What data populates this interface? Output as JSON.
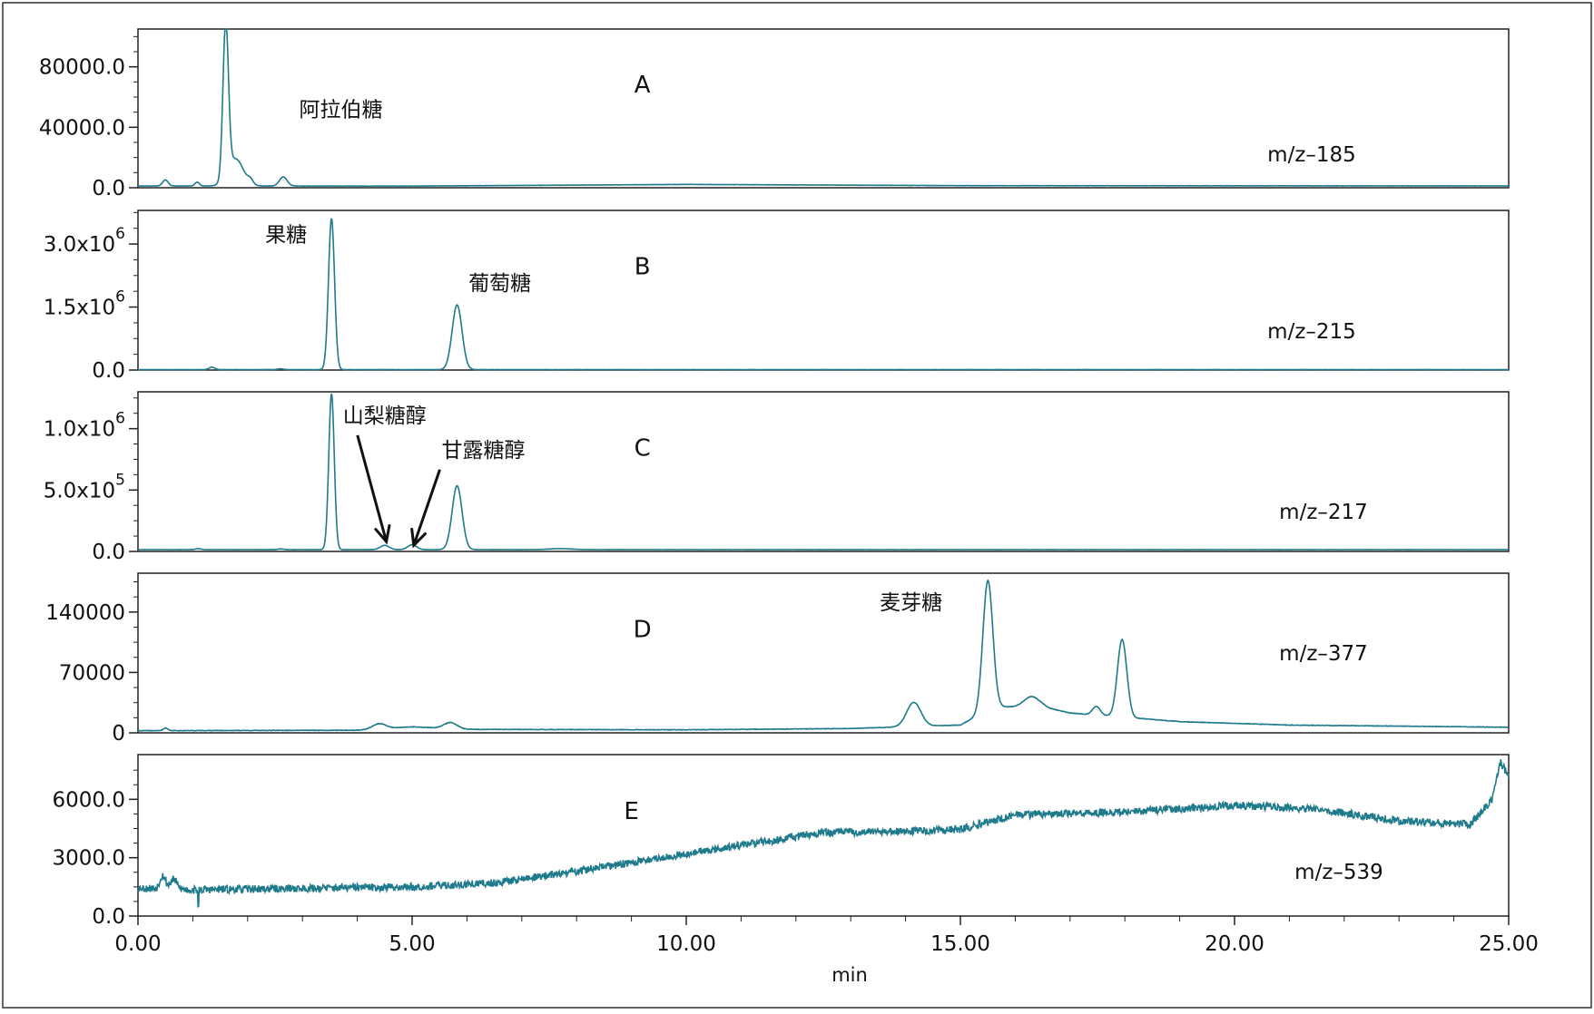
{
  "chart_data": {
    "type": "line",
    "xlabel": "min",
    "xlim": [
      0,
      25
    ],
    "x_ticks": [
      {
        "value": 0,
        "label": "0.00"
      },
      {
        "value": 5,
        "label": "5.00"
      },
      {
        "value": 10,
        "label": "10.00"
      },
      {
        "value": 15,
        "label": "15.00"
      },
      {
        "value": 20,
        "label": "20.00"
      },
      {
        "value": 25,
        "label": "25.00"
      }
    ],
    "line_color": "#1f7a8c",
    "panels": [
      {
        "id": "A",
        "letter": "A",
        "ion": "m/z–185",
        "ylim": [
          0,
          105000
        ],
        "y_ticks": [
          {
            "value": 0,
            "label": "0.0"
          },
          {
            "value": 40000,
            "label": "40000.0"
          },
          {
            "value": 80000,
            "label": "80000.0"
          }
        ],
        "annotations": [
          {
            "text": "阿拉伯糖",
            "x": 3.7,
            "y": 47000
          }
        ],
        "baseline": [
          [
            0,
            1200
          ],
          [
            5,
            1100
          ],
          [
            10,
            2200
          ],
          [
            15,
            1400
          ],
          [
            20,
            1300
          ],
          [
            25,
            1200
          ]
        ],
        "peaks": [
          {
            "rt": 0.5,
            "height": 4000,
            "width": 0.05
          },
          {
            "rt": 1.08,
            "height": 2500,
            "width": 0.04
          },
          {
            "rt": 1.6,
            "height": 102000,
            "width": 0.05
          },
          {
            "rt": 1.78,
            "height": 18000,
            "width": 0.14
          },
          {
            "rt": 2.05,
            "height": 3000,
            "width": 0.05
          },
          {
            "rt": 2.65,
            "height": 6000,
            "width": 0.07
          }
        ],
        "noise": 80,
        "seed": 11
      },
      {
        "id": "B",
        "letter": "B",
        "ion": "m/z–215",
        "ylim": [
          0,
          3800000
        ],
        "y_ticks": [
          {
            "value": 0,
            "label": "0.0",
            "base": "0.0",
            "exp": ""
          },
          {
            "value": 1500000,
            "label": "1.5x10^6",
            "base": "1.5x10",
            "exp": "6"
          },
          {
            "value": 3000000,
            "label": "3.0x10^6",
            "base": "3.0x10",
            "exp": "6"
          }
        ],
        "annotations": [
          {
            "text": "果糖",
            "x": 2.7,
            "y": 3050000
          },
          {
            "text": "葡萄糖",
            "x": 6.6,
            "y": 1900000
          }
        ],
        "baseline": [
          [
            0,
            10000
          ],
          [
            25,
            10000
          ]
        ],
        "peaks": [
          {
            "rt": 1.35,
            "height": 60000,
            "width": 0.05
          },
          {
            "rt": 2.6,
            "height": 20000,
            "width": 0.05
          },
          {
            "rt": 3.53,
            "height": 3600000,
            "width": 0.055
          },
          {
            "rt": 5.82,
            "height": 1540000,
            "width": 0.09
          }
        ],
        "noise": 2000,
        "seed": 23
      },
      {
        "id": "C",
        "letter": "C",
        "ion": "m/z–217",
        "ylim": [
          0,
          1300000
        ],
        "y_ticks": [
          {
            "value": 0,
            "label": "0.0",
            "base": "0.0",
            "exp": ""
          },
          {
            "value": 500000,
            "label": "5.0x10^5",
            "base": "5.0x10",
            "exp": "5"
          },
          {
            "value": 1000000,
            "label": "1.0x10^6",
            "base": "1.0x10",
            "exp": "6"
          }
        ],
        "annotations": [
          {
            "text": "山梨糖醇",
            "x": 4.5,
            "y": 1050000,
            "arrow_to": [
              4.53,
              80000
            ]
          },
          {
            "text": "甘露糖醇",
            "x": 6.3,
            "y": 770000,
            "arrow_to": [
              5.03,
              50000
            ]
          }
        ],
        "baseline": [
          [
            0,
            15000
          ],
          [
            25,
            15000
          ]
        ],
        "peaks": [
          {
            "rt": 1.1,
            "height": 8000,
            "width": 0.05
          },
          {
            "rt": 2.6,
            "height": 6000,
            "width": 0.05
          },
          {
            "rt": 3.53,
            "height": 1270000,
            "width": 0.05
          },
          {
            "rt": 4.5,
            "height": 35000,
            "width": 0.08
          },
          {
            "rt": 5.0,
            "height": 40000,
            "width": 0.08
          },
          {
            "rt": 5.82,
            "height": 520000,
            "width": 0.09
          },
          {
            "rt": 7.7,
            "height": 8000,
            "width": 0.2
          }
        ],
        "noise": 600,
        "seed": 37
      },
      {
        "id": "D",
        "letter": "D",
        "ion": "m/z–377",
        "ylim": [
          0,
          185000
        ],
        "y_ticks": [
          {
            "value": 0,
            "label": "0"
          },
          {
            "value": 70000,
            "label": "70000"
          },
          {
            "value": 140000,
            "label": "140000"
          }
        ],
        "annotations": [
          {
            "text": "麦芽糖",
            "x": 14.1,
            "y": 143000
          }
        ],
        "baseline": [
          [
            0,
            2500
          ],
          [
            4,
            3000
          ],
          [
            5,
            7000
          ],
          [
            6,
            4000
          ],
          [
            10,
            3500
          ],
          [
            13,
            5000
          ],
          [
            14,
            7000
          ],
          [
            15,
            9000
          ],
          [
            15.6,
            30000
          ],
          [
            16.5,
            30000
          ],
          [
            17,
            23000
          ],
          [
            18,
            18000
          ],
          [
            19,
            13000
          ],
          [
            21,
            9000
          ],
          [
            25,
            6500
          ]
        ],
        "peaks": [
          {
            "rt": 0.5,
            "height": 3000,
            "width": 0.04
          },
          {
            "rt": 4.4,
            "height": 6000,
            "width": 0.12
          },
          {
            "rt": 5.7,
            "height": 7000,
            "width": 0.12
          },
          {
            "rt": 14.15,
            "height": 28000,
            "width": 0.13
          },
          {
            "rt": 15.5,
            "height": 150000,
            "width": 0.09
          },
          {
            "rt": 16.3,
            "height": 12000,
            "width": 0.14
          },
          {
            "rt": 17.48,
            "height": 10000,
            "width": 0.07
          },
          {
            "rt": 17.95,
            "height": 90000,
            "width": 0.085
          }
        ],
        "noise": 300,
        "seed": 41
      },
      {
        "id": "E",
        "letter": "E",
        "ion": "m/z–539",
        "ylim": [
          0,
          8300
        ],
        "y_ticks": [
          {
            "value": 0,
            "label": "0.0"
          },
          {
            "value": 3000,
            "label": "3000.0"
          },
          {
            "value": 6000,
            "label": "6000.0"
          }
        ],
        "annotations": [],
        "baseline": [
          [
            0,
            1450
          ],
          [
            1,
            1350
          ],
          [
            5,
            1500
          ],
          [
            6.5,
            1700
          ],
          [
            8,
            2300
          ],
          [
            10,
            3200
          ],
          [
            12.5,
            4300
          ],
          [
            14,
            4350
          ],
          [
            15,
            4450
          ],
          [
            16,
            5200
          ],
          [
            18,
            5350
          ],
          [
            20,
            5700
          ],
          [
            21.5,
            5500
          ],
          [
            23,
            4900
          ],
          [
            24.3,
            4700
          ],
          [
            24.7,
            6000
          ],
          [
            24.85,
            7900
          ],
          [
            25,
            7200
          ]
        ],
        "peaks": [
          {
            "rt": 0.45,
            "height": 700,
            "width": 0.05
          },
          {
            "rt": 0.65,
            "height": 500,
            "width": 0.06
          }
        ],
        "dips": [
          {
            "rt": 1.1,
            "depth": 1000
          }
        ],
        "noise": 200,
        "seed": 53
      }
    ]
  }
}
